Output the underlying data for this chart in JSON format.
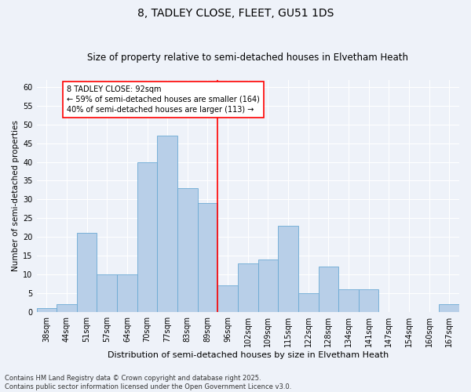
{
  "title": "8, TADLEY CLOSE, FLEET, GU51 1DS",
  "subtitle": "Size of property relative to semi-detached houses in Elvetham Heath",
  "xlabel": "Distribution of semi-detached houses by size in Elvetham Heath",
  "ylabel": "Number of semi-detached properties",
  "footnote": "Contains HM Land Registry data © Crown copyright and database right 2025.\nContains public sector information licensed under the Open Government Licence v3.0.",
  "bar_labels": [
    "38sqm",
    "44sqm",
    "51sqm",
    "57sqm",
    "64sqm",
    "70sqm",
    "77sqm",
    "83sqm",
    "89sqm",
    "96sqm",
    "102sqm",
    "109sqm",
    "115sqm",
    "122sqm",
    "128sqm",
    "134sqm",
    "141sqm",
    "147sqm",
    "154sqm",
    "160sqm",
    "167sqm"
  ],
  "bar_values": [
    1,
    2,
    21,
    10,
    10,
    40,
    47,
    33,
    29,
    7,
    13,
    14,
    23,
    5,
    12,
    6,
    6,
    0,
    0,
    0,
    2
  ],
  "bar_color": "#b8cfe8",
  "bar_edge_color": "#6aaad4",
  "vline_x_index": 8,
  "vline_color": "red",
  "annotation_box_text": "8 TADLEY CLOSE: 92sqm\n← 59% of semi-detached houses are smaller (164)\n40% of semi-detached houses are larger (113) →",
  "ylim": [
    0,
    62
  ],
  "yticks": [
    0,
    5,
    10,
    15,
    20,
    25,
    30,
    35,
    40,
    45,
    50,
    55,
    60
  ],
  "background_color": "#eef2f9",
  "grid_color": "#ffffff",
  "title_fontsize": 10,
  "subtitle_fontsize": 8.5,
  "xlabel_fontsize": 8,
  "ylabel_fontsize": 7.5,
  "tick_fontsize": 7,
  "annotation_fontsize": 7,
  "footnote_fontsize": 6
}
